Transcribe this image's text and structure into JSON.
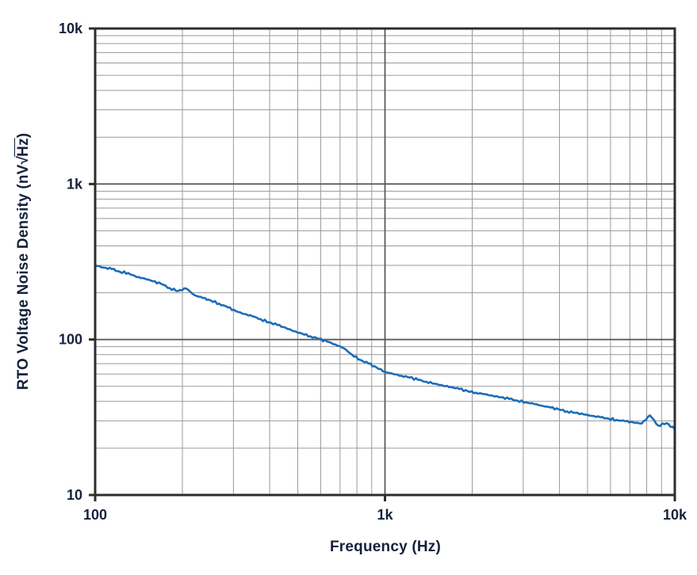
{
  "chart_data": {
    "type": "line",
    "title": "",
    "xlabel": "Frequency (Hz)",
    "ylabel": {
      "prefix": "RTO Voltage Noise Density (nV",
      "radical": "√",
      "radicand": "Hz",
      "suffix": ")"
    },
    "x_scale": "log",
    "y_scale": "log",
    "xlim": [
      100,
      10000
    ],
    "ylim": [
      10,
      10000
    ],
    "grid": {
      "major": true,
      "minor": true
    },
    "legend": "none",
    "x_ticks": [
      {
        "value": 100,
        "label": "100"
      },
      {
        "value": 1000,
        "label": "1k"
      },
      {
        "value": 10000,
        "label": "10k"
      }
    ],
    "y_ticks": [
      {
        "value": 10,
        "label": "10"
      },
      {
        "value": 100,
        "label": "100"
      },
      {
        "value": 1000,
        "label": "1k"
      },
      {
        "value": 10000,
        "label": "10k"
      }
    ],
    "series": [
      {
        "name": "RTO voltage noise density",
        "color": "#1b6db8",
        "x": [
          100,
          107,
          114,
          122,
          130,
          139,
          148,
          158,
          169,
          181,
          193,
          206,
          220,
          235,
          251,
          268,
          287,
          306,
          327,
          349,
          373,
          398,
          425,
          454,
          485,
          518,
          553,
          591,
          631,
          674,
          720,
          769,
          821,
          877,
          936,
          1000,
          1068,
          1141,
          1218,
          1301,
          1389,
          1484,
          1585,
          1692,
          1807,
          1930,
          2061,
          2201,
          2351,
          2511,
          2682,
          2864,
          3059,
          3267,
          3489,
          3726,
          3980,
          4250,
          4539,
          4848,
          5178,
          5530,
          5906,
          6308,
          6737,
          7195,
          7684,
          8207,
          8765,
          9361,
          10000
        ],
        "y": [
          300,
          290,
          284,
          272,
          268,
          252,
          247,
          237,
          228,
          214,
          205,
          213,
          193,
          185,
          178,
          170,
          161,
          152,
          146,
          141,
          135,
          129,
          124,
          119,
          113,
          109,
          105,
          101,
          97,
          93,
          88,
          80,
          74,
          70,
          66,
          62,
          60,
          58.5,
          57,
          55,
          53.5,
          52,
          50.5,
          49.5,
          48,
          46.5,
          45.5,
          44.5,
          43.5,
          42.5,
          41.5,
          40.5,
          39.5,
          38.5,
          37.5,
          36.5,
          35.5,
          34.5,
          33.8,
          33,
          32.3,
          31.6,
          31,
          30.4,
          29.8,
          29.3,
          28.8,
          32.5,
          28,
          29,
          26.5
        ]
      }
    ]
  },
  "colors": {
    "curve": "#1b6db8",
    "grid_minor": "#9a9a9a",
    "grid_major": "#5a5a5a",
    "frame": "#2d2d2d",
    "text": "#14223c",
    "background": "#ffffff"
  }
}
